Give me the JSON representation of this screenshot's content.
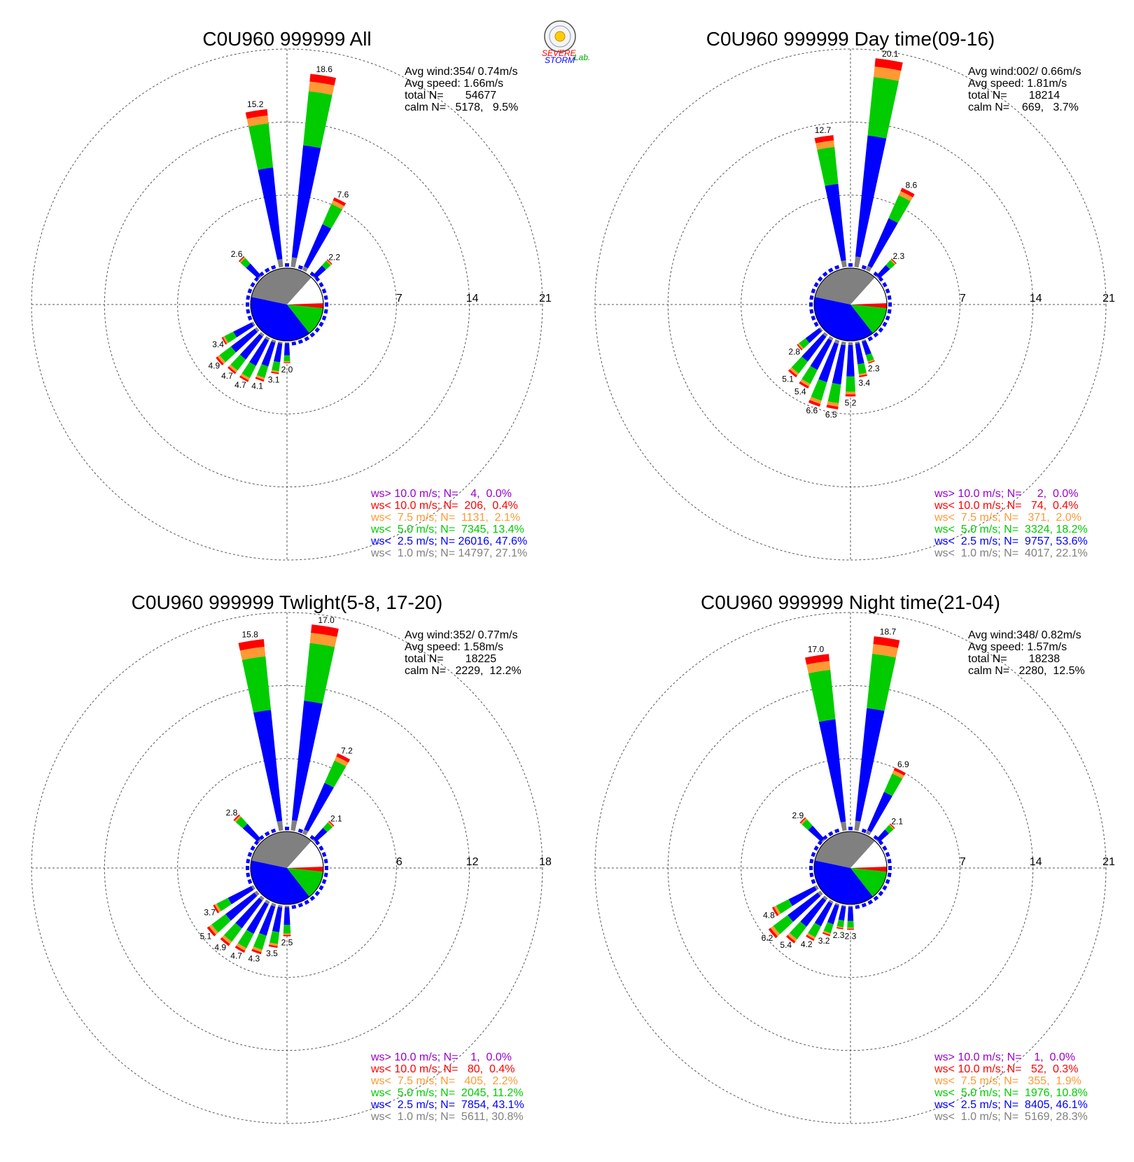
{
  "colors": {
    "ws_gt10": "#9900cc",
    "ws_lt10": "#ff0000",
    "ws_lt7_5": "#ff9933",
    "ws_lt5": "#00cc00",
    "ws_lt2_5": "#0000ff",
    "ws_lt1": "#808080"
  },
  "logo": {
    "line1": "SEVERE",
    "line2": "STORM",
    "line3": "Lab."
  },
  "chart_data": [
    {
      "type": "wind-rose",
      "title": "C0U960 999999 All",
      "stats": {
        "avg_wind": "Avg wind:354/ 0.74m/s",
        "avg_speed": "Avg speed: 1.66m/s",
        "total": "total N=       54677",
        "calm": "calm N=   5178,   9.5%"
      },
      "rings": [
        7,
        14,
        21
      ],
      "ring_labels": [
        "7",
        "14",
        "21"
      ],
      "rmax": 21,
      "directions_deg": [
        351,
        9,
        27,
        315,
        45,
        180,
        190,
        200,
        210,
        220,
        230,
        240
      ],
      "totals": [
        15.2,
        18.6,
        7.6,
        2.6,
        2.2,
        2.0,
        3.1,
        4.1,
        4.7,
        4.7,
        4.9,
        3.4
      ],
      "labels": [
        "15.2",
        "18.6",
        "7.6",
        "2.6",
        "2.2",
        "2.0",
        "3.1",
        "4.1",
        "4.7",
        "4.7",
        "4.9",
        "3.4"
      ],
      "legend": [
        {
          "class": "ws_gt10",
          "text": "ws> 10.0 m/s; N=    4,  0.0%"
        },
        {
          "class": "ws_lt10",
          "text": "ws< 10.0 m/s; N=  206,  0.4%"
        },
        {
          "class": "ws_lt7_5",
          "text": "ws<  7.5 m/s; N=  1131,  2.1%"
        },
        {
          "class": "ws_lt5",
          "text": "ws<  5.0 m/s; N=  7345, 13.4%"
        },
        {
          "class": "ws_lt2_5",
          "text": "ws<  2.5 m/s; N= 26016, 47.6%"
        },
        {
          "class": "ws_lt1",
          "text": "ws<  1.0 m/s; N= 14797, 27.1%"
        }
      ]
    },
    {
      "type": "wind-rose",
      "title": "C0U960 999999 Day time(09-16)",
      "stats": {
        "avg_wind": "Avg wind:002/ 0.66m/s",
        "avg_speed": "Avg speed: 1.81m/s",
        "total": "total N=       18214",
        "calm": "calm N=    669,   3.7%"
      },
      "rings": [
        7,
        14,
        21
      ],
      "ring_labels": [
        "7",
        "14",
        "21"
      ],
      "rmax": 21,
      "directions_deg": [
        351,
        9,
        27,
        45,
        160,
        170,
        180,
        190,
        200,
        210,
        220,
        230
      ],
      "totals": [
        12.7,
        20.1,
        8.6,
        2.3,
        2.3,
        3.4,
        5.2,
        6.5,
        6.6,
        5.4,
        5.1,
        2.8
      ],
      "labels": [
        "12.7",
        "20.1",
        "8.6",
        "2.3",
        "2.3",
        "3.4",
        "5.2",
        "6.5",
        "6.6",
        "5.4",
        "5.1",
        "2.8"
      ],
      "legend": [
        {
          "class": "ws_gt10",
          "text": "ws> 10.0 m/s; N=     2,  0.0%"
        },
        {
          "class": "ws_lt10",
          "text": "ws< 10.0 m/s; N=   74,  0.4%"
        },
        {
          "class": "ws_lt7_5",
          "text": "ws<  7.5 m/s; N=   371,  2.0%"
        },
        {
          "class": "ws_lt5",
          "text": "ws<  5.0 m/s; N=  3324, 18.2%"
        },
        {
          "class": "ws_lt2_5",
          "text": "ws<  2.5 m/s; N=  9757, 53.6%"
        },
        {
          "class": "ws_lt1",
          "text": "ws<  1.0 m/s; N=  4017, 22.1%"
        }
      ]
    },
    {
      "type": "wind-rose",
      "title": "C0U960 999999 Twlight(5-8, 17-20)",
      "stats": {
        "avg_wind": "Avg wind:352/ 0.77m/s",
        "avg_speed": "Avg speed: 1.58m/s",
        "total": "total N=       18225",
        "calm": "calm N=   2229,  12.2%"
      },
      "rings": [
        6,
        12,
        18
      ],
      "ring_labels": [
        "6",
        "12",
        "18"
      ],
      "rmax": 18,
      "directions_deg": [
        351,
        9,
        27,
        315,
        45,
        180,
        190,
        200,
        210,
        220,
        230,
        240
      ],
      "totals": [
        15.8,
        17.0,
        7.2,
        2.8,
        2.1,
        2.5,
        3.5,
        4.3,
        4.7,
        4.9,
        5.1,
        3.7
      ],
      "labels": [
        "15.8",
        "17.0",
        "7.2",
        "2.8",
        "2.1",
        "2.5",
        "3.5",
        "4.3",
        "4.7",
        "4.9",
        "5.1",
        "3.7"
      ],
      "legend": [
        {
          "class": "ws_gt10",
          "text": "ws> 10.0 m/s; N=    1,  0.0%"
        },
        {
          "class": "ws_lt10",
          "text": "ws< 10.0 m/s; N=   80,  0.4%"
        },
        {
          "class": "ws_lt7_5",
          "text": "ws<  7.5 m/s; N=   405,  2.2%"
        },
        {
          "class": "ws_lt5",
          "text": "ws<  5.0 m/s; N=  2045, 11.2%"
        },
        {
          "class": "ws_lt2_5",
          "text": "ws<  2.5 m/s; N=  7854, 43.1%"
        },
        {
          "class": "ws_lt1",
          "text": "ws<  1.0 m/s; N=  5611, 30.8%"
        }
      ]
    },
    {
      "type": "wind-rose",
      "title": "C0U960 999999 Night time(21-04)",
      "stats": {
        "avg_wind": "Avg wind:348/ 0.82m/s",
        "avg_speed": "Avg speed: 1.57m/s",
        "total": "total N=       18238",
        "calm": "calm N=   2280,  12.5%"
      },
      "rings": [
        7,
        14,
        21
      ],
      "ring_labels": [
        "7",
        "14",
        "21"
      ],
      "rmax": 21,
      "directions_deg": [
        351,
        9,
        27,
        315,
        45,
        180,
        190,
        200,
        210,
        220,
        230,
        240
      ],
      "totals": [
        17.0,
        18.7,
        6.9,
        2.9,
        2.1,
        2.3,
        2.3,
        3.2,
        4.2,
        5.4,
        6.2,
        4.8
      ],
      "labels": [
        "17.0",
        "18.7",
        "6.9",
        "2.9",
        "2.1",
        "2.3",
        "2.3",
        "3.2",
        "4.2",
        "5.4",
        "6.2",
        "4.8"
      ],
      "legend": [
        {
          "class": "ws_gt10",
          "text": "ws> 10.0 m/s; N=    1,  0.0%"
        },
        {
          "class": "ws_lt10",
          "text": "ws< 10.0 m/s; N=   52,  0.3%"
        },
        {
          "class": "ws_lt7_5",
          "text": "ws<  7.5 m/s; N=   355,  1.9%"
        },
        {
          "class": "ws_lt5",
          "text": "ws<  5.0 m/s; N=  1976, 10.8%"
        },
        {
          "class": "ws_lt2_5",
          "text": "ws<  2.5 m/s; N=  8405, 46.1%"
        },
        {
          "class": "ws_lt1",
          "text": "ws<  1.0 m/s; N=  5169, 28.3%"
        }
      ]
    }
  ]
}
